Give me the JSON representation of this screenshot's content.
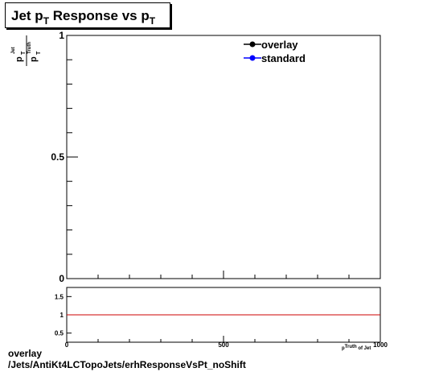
{
  "chart_data": [
    {
      "type": "line",
      "title_parts": [
        "Jet p",
        "T",
        " Response vs p",
        "T"
      ],
      "ylabel_parts": {
        "num": "p",
        "num_sub": "T",
        "num_sup": "Jet",
        "den": "p",
        "den_sub": "T",
        "den_sup": "Truth"
      },
      "ylim": [
        0,
        1
      ],
      "yticks": [
        {
          "value": 0,
          "label": "0"
        },
        {
          "value": 0.5,
          "label": "0.5"
        },
        {
          "value": 1,
          "label": "1"
        }
      ],
      "xlim": [
        0,
        1000
      ],
      "legend": {
        "placement": "top-right"
      },
      "series": [
        {
          "name": "overlay",
          "color": "#000000",
          "marker": "circle",
          "values": []
        },
        {
          "name": "standard",
          "color": "#0000ff",
          "marker": "circle",
          "values": []
        }
      ],
      "grid": false
    },
    {
      "type": "line",
      "xlabel": "p_T^Truth of Jet",
      "xlim": [
        0,
        1000
      ],
      "ylim": [
        0.25,
        1.75
      ],
      "xticks": [
        {
          "value": 0,
          "label": "0"
        },
        {
          "value": 500,
          "label": "500"
        },
        {
          "value": 1000,
          "label": "1000"
        }
      ],
      "yticks": [
        {
          "value": 0.5,
          "label": "0.5"
        },
        {
          "value": 1,
          "label": "1"
        },
        {
          "value": 1.5,
          "label": "1.5"
        }
      ],
      "reference_line": {
        "y": 1,
        "color": "#cc0000"
      },
      "grid": false
    }
  ],
  "footer": {
    "line1": "overlay",
    "line2": "/Jets/AntiKt4LCTopoJets/erhResponseVsPt_noShift"
  }
}
